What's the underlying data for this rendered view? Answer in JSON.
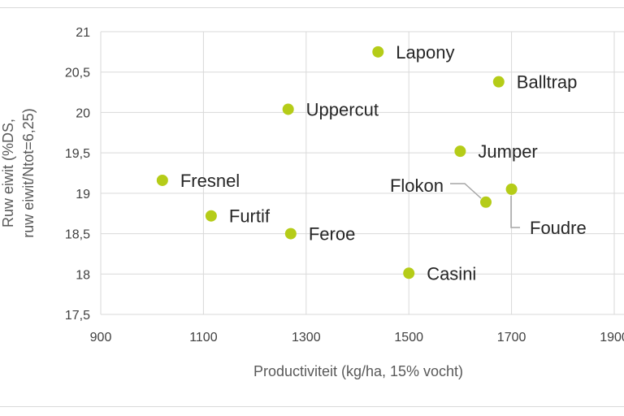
{
  "chart_data": {
    "type": "scatter",
    "xlabel": "Productiviteit (kg/ha, 15% vocht)",
    "ylabel_lines": [
      "Ruw eiwit (%DS,",
      "ruw eiwit/Ntot=6,25)"
    ],
    "xlim": [
      900,
      1900
    ],
    "ylim": [
      17.5,
      21
    ],
    "x_ticks": [
      "900",
      "1100",
      "1300",
      "1500",
      "1700",
      "1900"
    ],
    "y_ticks": [
      "17,5",
      "18",
      "18,5",
      "19",
      "19,5",
      "20",
      "20,5",
      "21"
    ],
    "grid": "vertical and horizontal",
    "legend": "none",
    "marker_color": "#b5cc18",
    "points": [
      {
        "label": "Lapony",
        "x": 1440,
        "y": 20.75
      },
      {
        "label": "Balltrap",
        "x": 1675,
        "y": 20.38
      },
      {
        "label": "Uppercut",
        "x": 1265,
        "y": 20.04
      },
      {
        "label": "Jumper",
        "x": 1600,
        "y": 19.52
      },
      {
        "label": "Fresnel",
        "x": 1020,
        "y": 19.16
      },
      {
        "label": "Flokon",
        "x": 1650,
        "y": 18.89
      },
      {
        "label": "Foudre",
        "x": 1700,
        "y": 19.05
      },
      {
        "label": "Furtif",
        "x": 1115,
        "y": 18.72
      },
      {
        "label": "Feroe",
        "x": 1270,
        "y": 18.5
      },
      {
        "label": "Casini",
        "x": 1500,
        "y": 18.01
      }
    ]
  }
}
